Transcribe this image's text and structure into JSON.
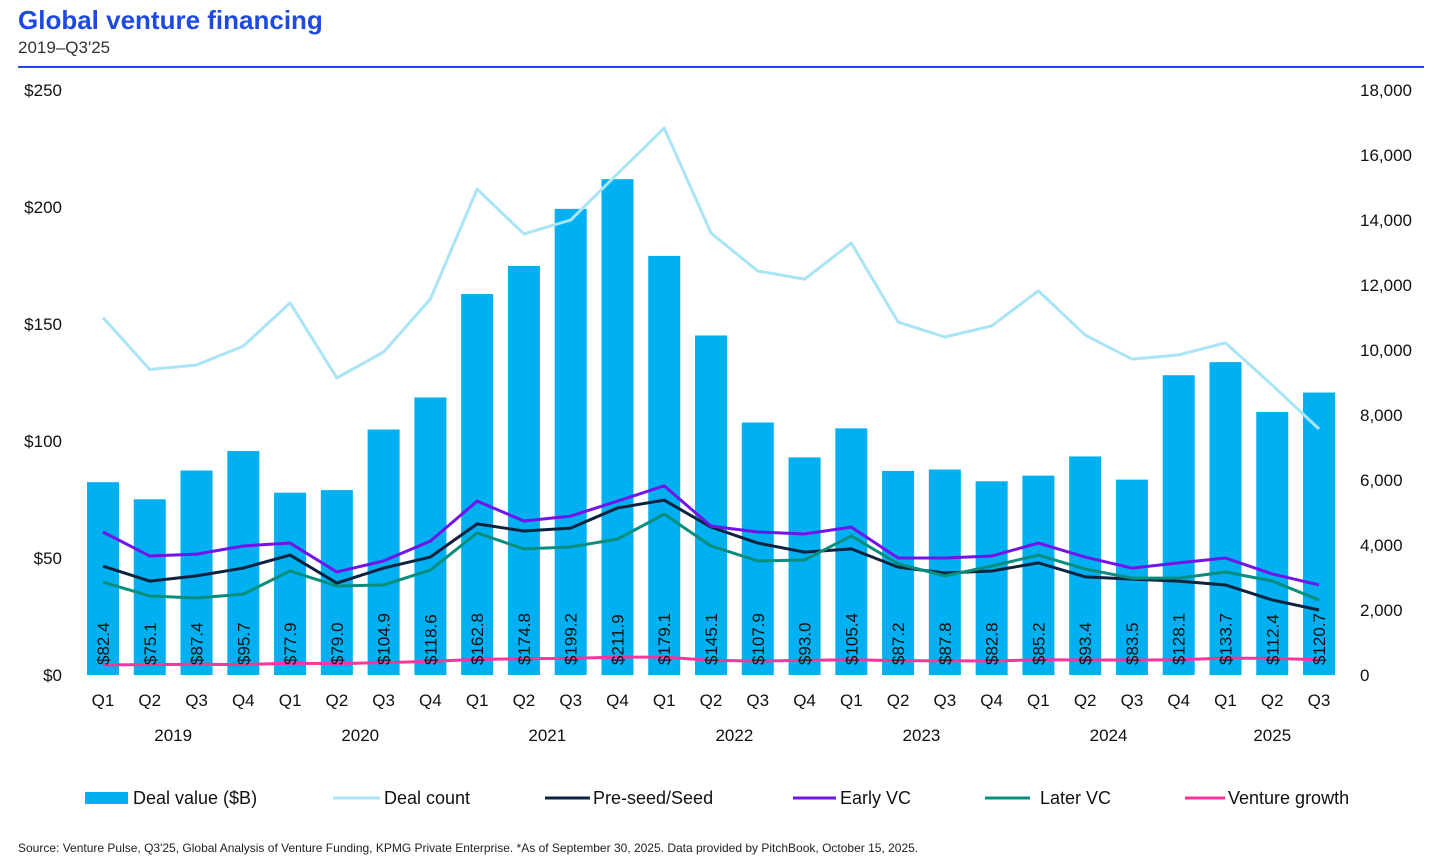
{
  "title": "Global venture financing",
  "subtitle": "2019–Q3'25",
  "source": "Source: Venture Pulse, Q3'25, Global Analysis of Venture Funding, KPMG Private Enterprise. *As of September 30, 2025. Data provided by PitchBook, October 15, 2025.",
  "chart_data": {
    "type": "bar+line",
    "title": "Global venture financing",
    "categories": [
      "Q1",
      "Q2",
      "Q3",
      "Q4",
      "Q1",
      "Q2",
      "Q3",
      "Q4",
      "Q1",
      "Q2",
      "Q3",
      "Q4",
      "Q1",
      "Q2",
      "Q3",
      "Q4",
      "Q1",
      "Q2",
      "Q3",
      "Q4",
      "Q1",
      "Q2",
      "Q3",
      "Q4",
      "Q1",
      "Q2",
      "Q3"
    ],
    "years": [
      {
        "label": "2019",
        "start": 0,
        "end": 3
      },
      {
        "label": "2020",
        "start": 4,
        "end": 7
      },
      {
        "label": "2021",
        "start": 8,
        "end": 11
      },
      {
        "label": "2022",
        "start": 12,
        "end": 15
      },
      {
        "label": "2023",
        "start": 16,
        "end": 19
      },
      {
        "label": "2024",
        "start": 20,
        "end": 23
      },
      {
        "label": "2025",
        "start": 24,
        "end": 26
      }
    ],
    "left_axis": {
      "ylim": [
        0,
        250
      ],
      "ticks": [
        0,
        50,
        100,
        150,
        200,
        250
      ],
      "tick_labels": [
        "$0",
        "$50",
        "$100",
        "$150",
        "$200",
        "$250"
      ]
    },
    "right_axis": {
      "ylim": [
        0,
        18000
      ],
      "ticks": [
        0,
        2000,
        4000,
        6000,
        8000,
        10000,
        12000,
        14000,
        16000,
        18000
      ],
      "tick_labels": [
        "0",
        "2,000",
        "4,000",
        "6,000",
        "8,000",
        "10,000",
        "12,000",
        "14,000",
        "16,000",
        "18,000"
      ]
    },
    "bars": {
      "name": "Deal value ($B)",
      "axis": "left",
      "color": "#00b0f0",
      "values": [
        82.4,
        75.1,
        87.4,
        95.7,
        77.9,
        79.0,
        104.9,
        118.6,
        162.8,
        174.8,
        199.2,
        211.9,
        179.1,
        145.1,
        107.9,
        93.0,
        105.4,
        87.2,
        87.8,
        82.8,
        85.2,
        93.4,
        83.5,
        128.1,
        133.7,
        112.4,
        120.7
      ],
      "labels": [
        "$82.4",
        "$75.1",
        "$87.4",
        "$95.7",
        "$77.9",
        "$79.0",
        "$104.9",
        "$118.6",
        "$162.8",
        "$174.8",
        "$199.2",
        "$211.9",
        "$179.1",
        "$145.1",
        "$107.9",
        "$93.0",
        "$105.4",
        "$87.2",
        "$87.8",
        "$82.8",
        "$85.2",
        "$93.4",
        "$83.5",
        "$128.1",
        "$133.7",
        "$112.4",
        "$120.7"
      ]
    },
    "series": [
      {
        "name": "Deal count",
        "axis": "right",
        "color": "#a9e4f7",
        "values": [
          11000,
          9400,
          9540,
          10120,
          11450,
          9140,
          9940,
          11570,
          14950,
          13570,
          14000,
          15420,
          16830,
          13600,
          12430,
          12180,
          13290,
          10860,
          10400,
          10740,
          11820,
          10460,
          9720,
          9850,
          10220,
          8920,
          7570
        ]
      },
      {
        "name": "Pre-seed/Seed",
        "axis": "right",
        "color": "#0c2340",
        "values": [
          3350,
          2890,
          3050,
          3290,
          3690,
          2830,
          3290,
          3630,
          4650,
          4430,
          4520,
          5140,
          5380,
          4550,
          4060,
          3780,
          3880,
          3320,
          3140,
          3200,
          3450,
          3020,
          2950,
          2890,
          2770,
          2310,
          2000
        ]
      },
      {
        "name": "Early VC",
        "axis": "right",
        "color": "#7213ea",
        "values": [
          4400,
          3660,
          3720,
          3970,
          4060,
          3170,
          3510,
          4120,
          5350,
          4740,
          4890,
          5350,
          5820,
          4580,
          4400,
          4340,
          4550,
          3600,
          3600,
          3660,
          4060,
          3630,
          3290,
          3450,
          3600,
          3110,
          2770
        ]
      },
      {
        "name": "Later VC",
        "axis": "right",
        "color": "#098e7e",
        "values": [
          2860,
          2430,
          2370,
          2490,
          3200,
          2740,
          2770,
          3230,
          4370,
          3880,
          3940,
          4180,
          4950,
          3970,
          3510,
          3540,
          4280,
          3420,
          3050,
          3350,
          3690,
          3260,
          2980,
          2980,
          3170,
          2890,
          2310
        ]
      },
      {
        "name": "Venture growth",
        "axis": "right",
        "color": "#fd349c",
        "values": [
          310,
          320,
          330,
          320,
          360,
          350,
          380,
          420,
          480,
          500,
          510,
          550,
          550,
          450,
          430,
          450,
          470,
          440,
          440,
          430,
          470,
          460,
          460,
          470,
          520,
          510,
          470
        ]
      }
    ],
    "legend": [
      "Deal value ($B)",
      "Deal count",
      "Pre-seed/Seed",
      "Early VC",
      "Later VC",
      "Venture growth"
    ],
    "legend_position": "bottom",
    "grid": false
  }
}
